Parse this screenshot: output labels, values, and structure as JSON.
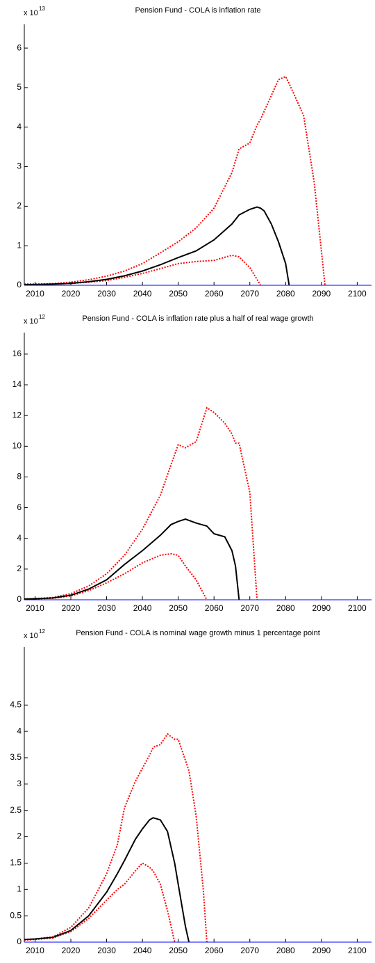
{
  "chart_data": [
    {
      "type": "line",
      "title": "Pension Fund - COLA is inflation rate",
      "scale_base": "x 10",
      "scale_exponent": "13",
      "x": [
        2007,
        2010,
        2015,
        2020,
        2025,
        2030,
        2035,
        2040,
        2045,
        2050,
        2055,
        2060,
        2065,
        2067,
        2070,
        2072,
        2073,
        2074,
        2076,
        2078,
        2080,
        2081,
        2085,
        2088,
        2091
      ],
      "series": [
        {
          "color": "#ff0000",
          "style": "dotted",
          "values": [
            0.03,
            0.03,
            0.04,
            0.08,
            0.14,
            0.23,
            0.36,
            0.55,
            0.82,
            1.1,
            1.45,
            1.95,
            2.85,
            3.45,
            3.6,
            4.05,
            4.2,
            4.4,
            4.8,
            5.2,
            5.28,
            5.1,
            4.3,
            2.6,
            0
          ]
        },
        {
          "color": "#ff0000",
          "style": "dotted",
          "values": [
            0.02,
            0.02,
            0.03,
            0.05,
            0.08,
            0.12,
            0.2,
            0.3,
            0.42,
            0.55,
            0.6,
            0.63,
            0.76,
            0.72,
            0.45,
            0.15,
            0,
            null,
            null,
            null,
            null,
            null,
            null,
            null,
            null
          ]
        },
        {
          "color": "#000000",
          "style": "solid",
          "values": [
            0.02,
            0.02,
            0.03,
            0.05,
            0.09,
            0.15,
            0.24,
            0.36,
            0.52,
            0.7,
            0.87,
            1.15,
            1.55,
            1.78,
            1.92,
            1.98,
            1.95,
            1.88,
            1.55,
            1.1,
            0.55,
            0,
            null,
            null,
            null
          ]
        }
      ],
      "xlim": [
        2007,
        2104
      ],
      "ylim": [
        0,
        6.6
      ],
      "xticks": [
        2010,
        2020,
        2030,
        2040,
        2050,
        2060,
        2070,
        2080,
        2090,
        2100
      ],
      "yticks": [
        0,
        1,
        2,
        3,
        4,
        5,
        6
      ],
      "zero_line_color": "#0000ff"
    },
    {
      "type": "line",
      "title": "Pension Fund - COLA is inflation rate plus a half of real wage growth",
      "scale_base": "x 10",
      "scale_exponent": "12",
      "x": [
        2007,
        2010,
        2015,
        2020,
        2025,
        2030,
        2035,
        2040,
        2045,
        2048,
        2050,
        2052,
        2055,
        2058,
        2060,
        2063,
        2065,
        2066,
        2067,
        2070,
        2072
      ],
      "series": [
        {
          "color": "#ff0000",
          "style": "dotted",
          "values": [
            0.05,
            0.08,
            0.15,
            0.4,
            0.9,
            1.7,
            2.9,
            4.6,
            6.8,
            8.8,
            10.1,
            9.9,
            10.3,
            12.5,
            12.2,
            11.5,
            10.8,
            10.2,
            10.2,
            7.0,
            0
          ]
        },
        {
          "color": "#ff0000",
          "style": "dotted",
          "values": [
            0.04,
            0.06,
            0.1,
            0.25,
            0.6,
            1.1,
            1.7,
            2.4,
            2.9,
            3.0,
            2.9,
            2.2,
            1.3,
            0,
            null,
            null,
            null,
            null,
            null,
            null,
            null
          ]
        },
        {
          "color": "#000000",
          "style": "solid",
          "values": [
            0.05,
            0.07,
            0.12,
            0.3,
            0.7,
            1.3,
            2.3,
            3.2,
            4.2,
            4.9,
            5.1,
            5.25,
            5.0,
            4.8,
            4.3,
            4.1,
            3.2,
            2.2,
            0,
            null,
            null
          ]
        }
      ],
      "xlim": [
        2007,
        2104
      ],
      "ylim": [
        0,
        17.4
      ],
      "xticks": [
        2010,
        2020,
        2030,
        2040,
        2050,
        2060,
        2070,
        2080,
        2090,
        2100
      ],
      "yticks": [
        0,
        2,
        4,
        6,
        8,
        10,
        12,
        14,
        16
      ],
      "zero_line_color": "#0000ff"
    },
    {
      "type": "line",
      "title": "Pension Fund - COLA is nominal wage growth minus 1 percentage point",
      "scale_base": "x 10",
      "scale_exponent": "12",
      "x": [
        2007,
        2010,
        2015,
        2020,
        2025,
        2030,
        2033,
        2035,
        2038,
        2040,
        2042,
        2043,
        2045,
        2047,
        2049,
        2050,
        2052,
        2053,
        2055,
        2057,
        2058
      ],
      "series": [
        {
          "color": "#ff0000",
          "style": "dotted",
          "values": [
            0.05,
            0.06,
            0.1,
            0.28,
            0.65,
            1.3,
            1.85,
            2.55,
            3.05,
            3.3,
            3.55,
            3.7,
            3.75,
            3.95,
            3.85,
            3.85,
            3.45,
            3.25,
            2.4,
            1.0,
            0
          ]
        },
        {
          "color": "#ff0000",
          "style": "dotted",
          "values": [
            0.04,
            0.05,
            0.08,
            0.2,
            0.45,
            0.8,
            1.0,
            1.1,
            1.35,
            1.5,
            1.42,
            1.35,
            1.1,
            0.6,
            0,
            null,
            null,
            null,
            null,
            null,
            null
          ]
        },
        {
          "color": "#000000",
          "style": "solid",
          "values": [
            0.05,
            0.06,
            0.09,
            0.22,
            0.5,
            0.95,
            1.3,
            1.55,
            1.95,
            2.15,
            2.32,
            2.36,
            2.32,
            2.1,
            1.5,
            1.1,
            0.3,
            0,
            null,
            null,
            null
          ]
        }
      ],
      "xlim": [
        2007,
        2104
      ],
      "ylim": [
        0,
        5.6
      ],
      "xticks": [
        2010,
        2020,
        2030,
        2040,
        2050,
        2060,
        2070,
        2080,
        2090,
        2100
      ],
      "yticks": [
        0,
        0.5,
        1,
        1.5,
        2,
        2.5,
        3,
        3.5,
        4,
        4.5
      ],
      "zero_line_color": "#0000ff"
    }
  ]
}
